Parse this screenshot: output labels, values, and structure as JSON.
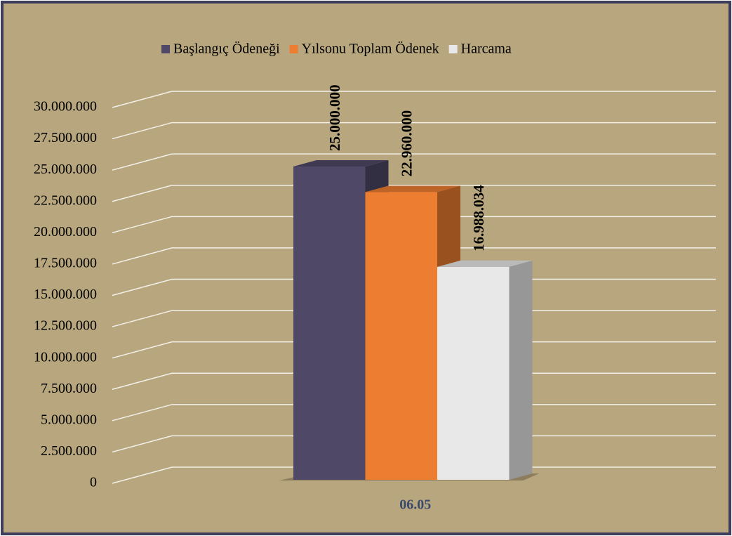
{
  "chart_data": {
    "type": "bar3d",
    "categories": [
      "06.05"
    ],
    "series": [
      {
        "name": "Başlangıç Ödeneği",
        "color": "#4f4866",
        "values": [
          25000000
        ],
        "value_labels": [
          "25.000.000"
        ]
      },
      {
        "name": "Yılsonu Toplam Ödenek",
        "color": "#ed7d31",
        "values": [
          22960000
        ],
        "value_labels": [
          "22.960.000"
        ]
      },
      {
        "name": "Harcama",
        "color": "#e8e8e8",
        "values": [
          16988034
        ],
        "value_labels": [
          "16.988.034"
        ]
      }
    ],
    "ylim": [
      0,
      30000000
    ],
    "yticks": [
      0,
      {
        "value": 2500000,
        "label": "2.500.000"
      },
      {
        "value": 5000000,
        "label": "5.000.000"
      },
      {
        "value": 7500000,
        "label": "7.500.000"
      },
      {
        "value": 10000000,
        "label": "10.000.000"
      },
      {
        "value": 12500000,
        "label": "12.500.000"
      },
      {
        "value": 15000000,
        "label": "15.000.000"
      },
      {
        "value": 17500000,
        "label": "17.500.000"
      },
      {
        "value": 20000000,
        "label": "20.000.000"
      },
      {
        "value": 22500000,
        "label": "22.500.000"
      },
      {
        "value": 25000000,
        "label": "25.000.000"
      },
      {
        "value": 27500000,
        "label": "27.500.000"
      },
      {
        "value": 30000000,
        "label": "30.000.000"
      }
    ],
    "grid": true,
    "legend": "top"
  }
}
